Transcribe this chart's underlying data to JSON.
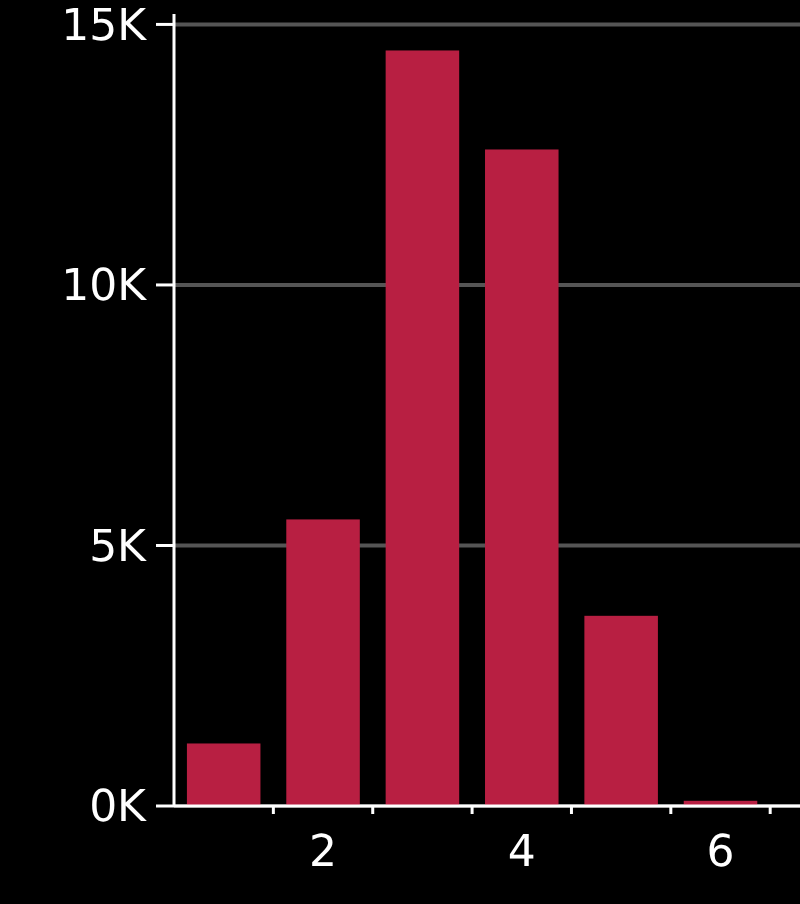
{
  "chart_data": {
    "type": "histogram",
    "bins": [
      0.5,
      1.5,
      2.5,
      3.5,
      4.5,
      5.5,
      6.5
    ],
    "values": [
      1200,
      5500,
      14500,
      12600,
      3650,
      100
    ],
    "color": "#b81f42",
    "xlim": [
      0.5,
      6.8
    ],
    "xticks": [
      {
        "value": 1.5,
        "label": null
      },
      2,
      {
        "value": 2.5,
        "label": null
      },
      {
        "value": 3.5,
        "label": null
      },
      4,
      {
        "value": 4.5,
        "label": null
      },
      {
        "value": 5.5,
        "label": null
      },
      6,
      {
        "value": 6.5,
        "label": null
      }
    ],
    "ylim": [
      0,
      15200
    ],
    "yticks": [
      {
        "value": 0,
        "label": "0K"
      },
      {
        "value": 5000,
        "label": "5K"
      },
      {
        "value": 10000,
        "label": "10K"
      },
      {
        "value": 15000,
        "label": "15K"
      }
    ],
    "grid": "y"
  }
}
